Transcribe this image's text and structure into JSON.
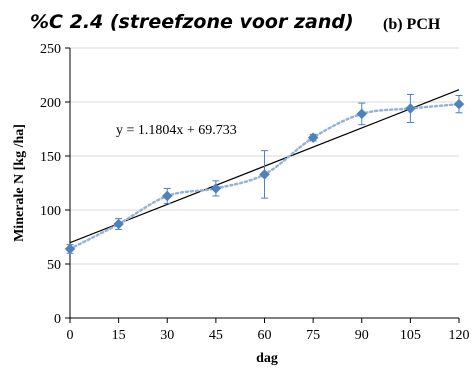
{
  "chart_data": {
    "type": "scatter",
    "title": "%C 2.4 (streefzone voor zand)",
    "panel_label": "(b) PCH",
    "xlabel": "dag",
    "ylabel": "Minerale N [kg /ha]",
    "xlim": [
      0,
      120
    ],
    "ylim": [
      0,
      250
    ],
    "x_ticks": [
      0,
      15,
      30,
      45,
      60,
      75,
      90,
      105,
      120
    ],
    "y_ticks": [
      0,
      50,
      100,
      150,
      200,
      250
    ],
    "grid": "horizontal",
    "series": [
      {
        "x": [
          0,
          15,
          30,
          45,
          60,
          75,
          90,
          105,
          120
        ],
        "y": [
          64,
          87,
          113,
          120,
          133,
          167,
          189,
          194,
          198
        ],
        "error": [
          4,
          5,
          7,
          7,
          22,
          3,
          10,
          13,
          8
        ],
        "marker": "diamond",
        "connector": "smoothed-dotted",
        "color": "#4f81bd",
        "connector_color": "#95b3d7"
      }
    ],
    "trendline": {
      "slope": 1.1804,
      "intercept": 69.733,
      "color": "#000000",
      "equation_label": "y = 1.1804x + 69.733"
    },
    "gridline_color": "#d9d9d9"
  }
}
